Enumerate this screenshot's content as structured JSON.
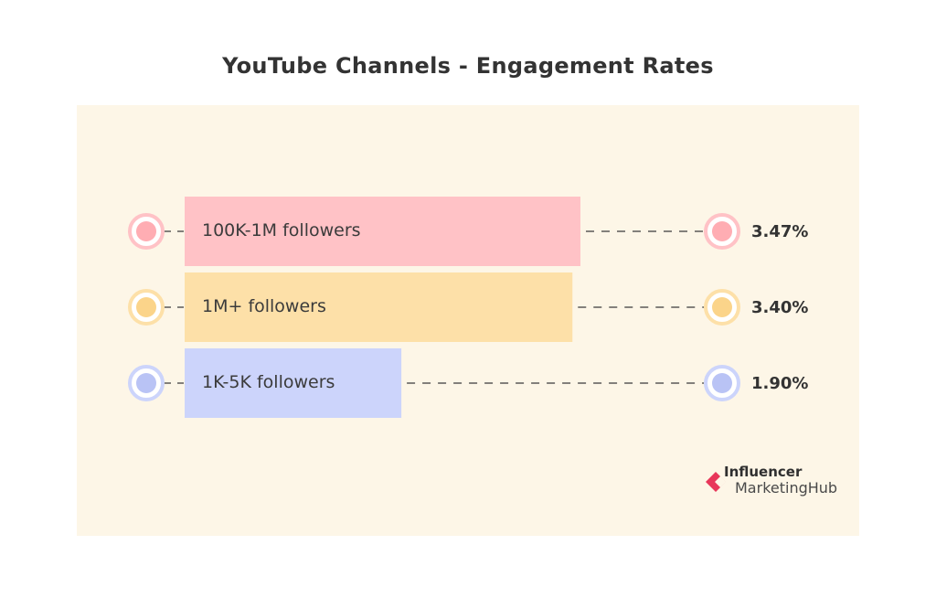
{
  "chart_data": {
    "type": "bar",
    "title": "YouTube Channels - Engagement Rates",
    "categories": [
      "100K-1M followers",
      "1M+ followers",
      "1K-5K followers"
    ],
    "values": [
      3.47,
      3.4,
      1.9
    ],
    "value_labels": [
      "3.47%",
      "3.40%",
      "1.90%"
    ],
    "orientation": "horizontal",
    "grid": false,
    "legend": "none"
  },
  "colors": {
    "bars": [
      "#ffc2c6",
      "#fde0a8",
      "#ccd4fb"
    ],
    "rings": [
      "#ffc2c6",
      "#fde0a8",
      "#ccd4fb"
    ],
    "dots": [
      "#ffadb3",
      "#fbd48a",
      "#b9c3f5"
    ],
    "panel": "#fdf6e7",
    "logo_accent": "#e8375a"
  },
  "logo": {
    "line1": "Influencer",
    "line2": "MarketingHub"
  }
}
